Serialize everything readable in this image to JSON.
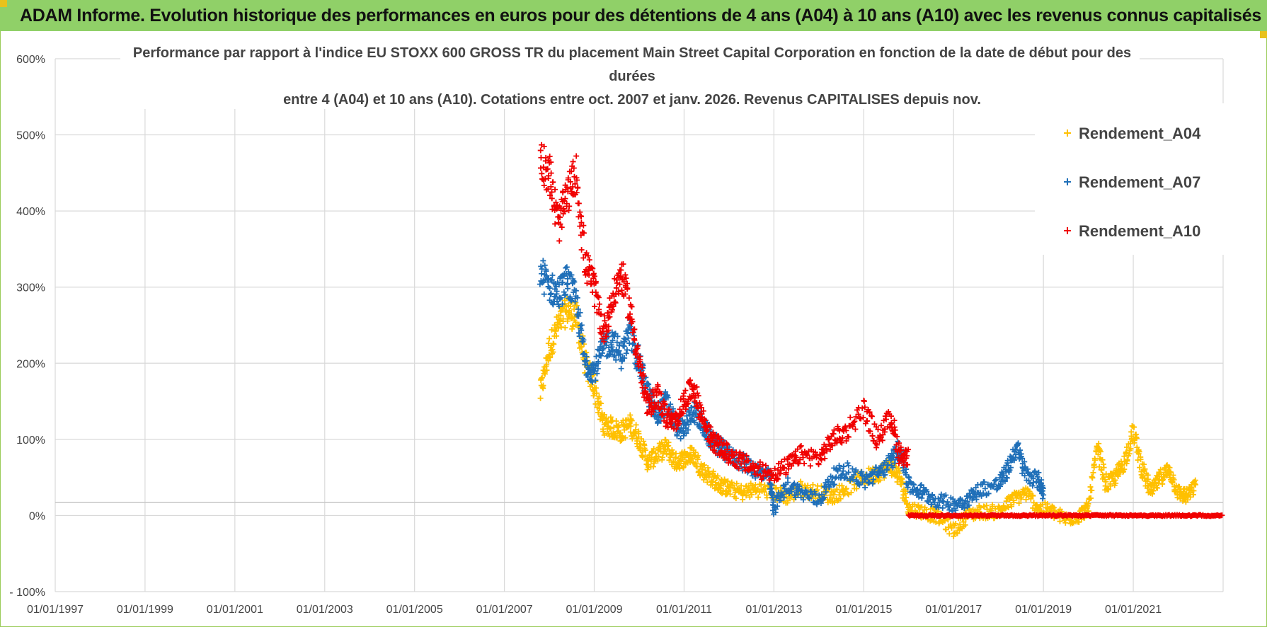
{
  "banner": {
    "title": "ADAM Informe. Evolution historique des performances en euros pour des détentions de 4 ans (A04) à 10 ans (A10) avec les revenus connus capitalisés"
  },
  "colors": {
    "banner_bg": "#90d068",
    "A04": "#ffc000",
    "A07": "#1f6fb8",
    "A10": "#f00000",
    "grid": "#d9d9d9"
  },
  "chart_data": {
    "type": "scatter",
    "title_lines": [
      "Performance par rapport à l'indice EU STOXX 600 GROSS TR  du placement Main Street Capital Corporation en fonction de la date de début pour des",
      "durées",
      "entre 4 (A04) et 10 ans (A10). Cotations entre oct. 2007 et janv. 2026. Revenus CAPITALISES depuis nov."
    ],
    "xlabel": "",
    "ylabel": "",
    "x_ticks": [
      "01/01/1997",
      "01/01/1999",
      "01/01/2001",
      "01/01/2003",
      "01/01/2005",
      "01/01/2007",
      "01/01/2009",
      "01/01/2011",
      "01/01/2013",
      "01/01/2015",
      "01/01/2017",
      "01/01/2019",
      "01/01/2021"
    ],
    "xlim": [
      1997.0,
      2023.0
    ],
    "y_ticks": [
      "600%",
      "500%",
      "400%",
      "300%",
      "200%",
      "100%",
      "0%",
      "- 100%"
    ],
    "ylim": [
      -100,
      600
    ],
    "legend": [
      "Rendement_A04",
      "Rendement_A07",
      "Rendement_A10"
    ],
    "legend_position": "top-right",
    "series": [
      {
        "name": "Rendement_A04",
        "color": "#ffc000",
        "points": [
          [
            2007.8,
            160
          ],
          [
            2008.0,
            220
          ],
          [
            2008.2,
            250
          ],
          [
            2008.4,
            270
          ],
          [
            2008.6,
            260
          ],
          [
            2008.8,
            200
          ],
          [
            2009.0,
            170
          ],
          [
            2009.2,
            120
          ],
          [
            2009.4,
            115
          ],
          [
            2009.6,
            110
          ],
          [
            2009.8,
            120
          ],
          [
            2010.0,
            100
          ],
          [
            2010.2,
            70
          ],
          [
            2010.4,
            80
          ],
          [
            2010.6,
            90
          ],
          [
            2010.8,
            70
          ],
          [
            2011.0,
            75
          ],
          [
            2011.2,
            80
          ],
          [
            2011.4,
            60
          ],
          [
            2011.6,
            50
          ],
          [
            2011.8,
            40
          ],
          [
            2012.0,
            35
          ],
          [
            2012.3,
            30
          ],
          [
            2012.6,
            35
          ],
          [
            2013.0,
            30
          ],
          [
            2013.3,
            25
          ],
          [
            2013.6,
            35
          ],
          [
            2014.0,
            30
          ],
          [
            2014.3,
            25
          ],
          [
            2014.6,
            35
          ],
          [
            2015.0,
            50
          ],
          [
            2015.3,
            55
          ],
          [
            2015.6,
            65
          ],
          [
            2015.8,
            50
          ],
          [
            2016.0,
            10
          ],
          [
            2016.3,
            5
          ],
          [
            2016.6,
            0
          ],
          [
            2017.0,
            -20
          ],
          [
            2017.3,
            0
          ],
          [
            2017.6,
            5
          ],
          [
            2018.0,
            5
          ],
          [
            2018.3,
            20
          ],
          [
            2018.6,
            30
          ],
          [
            2018.9,
            10
          ],
          [
            2019.2,
            5
          ],
          [
            2019.5,
            -5
          ],
          [
            2019.8,
            0
          ],
          [
            2020.0,
            10
          ],
          [
            2020.2,
            90
          ],
          [
            2020.4,
            40
          ],
          [
            2020.6,
            50
          ],
          [
            2020.8,
            70
          ],
          [
            2021.0,
            110
          ],
          [
            2021.2,
            60
          ],
          [
            2021.4,
            30
          ],
          [
            2021.6,
            50
          ],
          [
            2021.8,
            60
          ],
          [
            2022.0,
            30
          ],
          [
            2022.2,
            25
          ],
          [
            2022.4,
            40
          ]
        ]
      },
      {
        "name": "Rendement_A07",
        "color": "#1f6fb8",
        "points": [
          [
            2007.8,
            320
          ],
          [
            2008.0,
            300
          ],
          [
            2008.2,
            290
          ],
          [
            2008.4,
            310
          ],
          [
            2008.6,
            280
          ],
          [
            2008.8,
            200
          ],
          [
            2009.0,
            190
          ],
          [
            2009.2,
            220
          ],
          [
            2009.4,
            230
          ],
          [
            2009.6,
            210
          ],
          [
            2009.8,
            240
          ],
          [
            2010.0,
            200
          ],
          [
            2010.2,
            160
          ],
          [
            2010.4,
            130
          ],
          [
            2010.6,
            150
          ],
          [
            2010.8,
            120
          ],
          [
            2011.0,
            110
          ],
          [
            2011.2,
            140
          ],
          [
            2011.4,
            120
          ],
          [
            2011.6,
            100
          ],
          [
            2011.8,
            90
          ],
          [
            2012.0,
            80
          ],
          [
            2012.3,
            70
          ],
          [
            2012.6,
            60
          ],
          [
            2012.9,
            50
          ],
          [
            2013.0,
            10
          ],
          [
            2013.3,
            40
          ],
          [
            2013.6,
            30
          ],
          [
            2014.0,
            20
          ],
          [
            2014.3,
            50
          ],
          [
            2014.6,
            60
          ],
          [
            2015.0,
            45
          ],
          [
            2015.3,
            55
          ],
          [
            2015.6,
            70
          ],
          [
            2015.8,
            90
          ],
          [
            2016.0,
            40
          ],
          [
            2016.3,
            30
          ],
          [
            2016.6,
            20
          ],
          [
            2017.0,
            15
          ],
          [
            2017.3,
            20
          ],
          [
            2017.6,
            35
          ],
          [
            2018.0,
            40
          ],
          [
            2018.2,
            60
          ],
          [
            2018.4,
            90
          ],
          [
            2018.6,
            55
          ],
          [
            2018.9,
            45
          ],
          [
            2019.0,
            30
          ]
        ]
      },
      {
        "name": "Rendement_A10",
        "color": "#f00000",
        "points": [
          [
            2007.8,
            470
          ],
          [
            2008.0,
            450
          ],
          [
            2008.2,
            380
          ],
          [
            2008.4,
            420
          ],
          [
            2008.6,
            450
          ],
          [
            2008.8,
            330
          ],
          [
            2009.0,
            300
          ],
          [
            2009.2,
            240
          ],
          [
            2009.4,
            280
          ],
          [
            2009.6,
            320
          ],
          [
            2009.8,
            270
          ],
          [
            2010.0,
            200
          ],
          [
            2010.2,
            140
          ],
          [
            2010.4,
            160
          ],
          [
            2010.6,
            130
          ],
          [
            2010.8,
            120
          ],
          [
            2011.0,
            150
          ],
          [
            2011.2,
            170
          ],
          [
            2011.4,
            130
          ],
          [
            2011.6,
            100
          ],
          [
            2011.8,
            90
          ],
          [
            2012.0,
            80
          ],
          [
            2012.3,
            70
          ],
          [
            2012.6,
            60
          ],
          [
            2013.0,
            55
          ],
          [
            2013.3,
            65
          ],
          [
            2013.6,
            80
          ],
          [
            2014.0,
            75
          ],
          [
            2014.3,
            100
          ],
          [
            2014.6,
            110
          ],
          [
            2015.0,
            140
          ],
          [
            2015.3,
            100
          ],
          [
            2015.6,
            130
          ],
          [
            2015.8,
            80
          ],
          [
            2016.0,
            75
          ]
        ],
        "flat": {
          "from": 2016.0,
          "to": 2023.0,
          "value": 0
        }
      }
    ]
  }
}
